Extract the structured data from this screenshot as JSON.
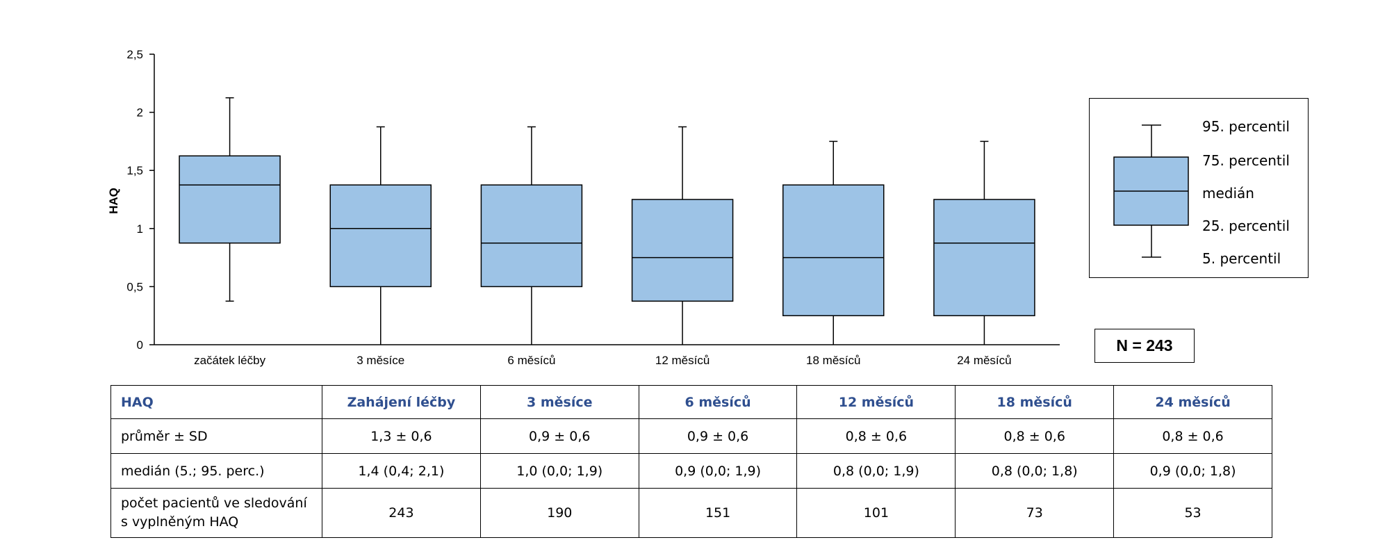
{
  "chart_data": {
    "type": "boxplot",
    "ylabel": "HAQ",
    "ylim": [
      0,
      2.5
    ],
    "yticks": [
      "0",
      "0,5",
      "1",
      "1,5",
      "2",
      "2,5"
    ],
    "ytick_values": [
      0,
      0.5,
      1,
      1.5,
      2,
      2.5
    ],
    "categories": [
      "začátek léčby",
      "3 měsíce",
      "6 měsíců",
      "12 měsíců",
      "18 měsíců",
      "24 měsíců"
    ],
    "boxes": [
      {
        "p5": 0.375,
        "q1": 0.875,
        "median": 1.375,
        "q3": 1.625,
        "p95": 2.125
      },
      {
        "p5": 0.0,
        "q1": 0.5,
        "median": 1.0,
        "q3": 1.375,
        "p95": 1.875
      },
      {
        "p5": 0.0,
        "q1": 0.5,
        "median": 0.875,
        "q3": 1.375,
        "p95": 1.875
      },
      {
        "p5": 0.0,
        "q1": 0.375,
        "median": 0.75,
        "q3": 1.25,
        "p95": 1.875
      },
      {
        "p5": 0.0,
        "q1": 0.25,
        "median": 0.75,
        "q3": 1.375,
        "p95": 1.75
      },
      {
        "p5": 0.0,
        "q1": 0.25,
        "median": 0.875,
        "q3": 1.25,
        "p95": 1.75
      }
    ],
    "box_color": "#9dc3e6",
    "legend": [
      "95. percentil",
      "75. percentil",
      "medián",
      "25. percentil",
      "5. percentil"
    ],
    "n_label": "N = 243"
  },
  "table": {
    "headers": [
      "HAQ",
      "Zahájení léčby",
      "3 měsíce",
      "6 měsíců",
      "12 měsíců",
      "18 měsíců",
      "24 měsíců"
    ],
    "header_color": "#2f4f8f",
    "rows": [
      {
        "label": "průměr ± SD",
        "values": [
          "1,3 ± 0,6",
          "0,9 ± 0,6",
          "0,9 ± 0,6",
          "0,8 ± 0,6",
          "0,8 ± 0,6",
          "0,8 ± 0,6"
        ]
      },
      {
        "label": "medián (5.; 95. perc.)",
        "values": [
          "1,4 (0,4; 2,1)",
          "1,0 (0,0; 1,9)",
          "0,9 (0,0; 1,9)",
          "0,8 (0,0; 1,9)",
          "0,8 (0,0; 1,8)",
          "0,9 (0,0; 1,8)"
        ]
      },
      {
        "label_line1": "počet pacientů ve sledování",
        "label_line2": "s vyplněným HAQ",
        "values": [
          "243",
          "190",
          "151",
          "101",
          "73",
          "53"
        ]
      }
    ]
  }
}
